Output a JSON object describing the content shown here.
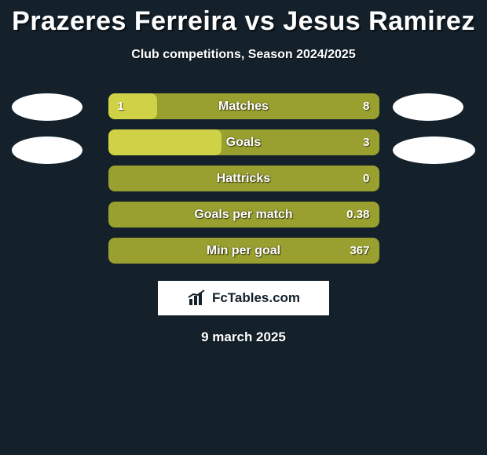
{
  "header": {
    "title": "Prazeres Ferreira vs Jesus Ramirez",
    "subtitle": "Club competitions, Season 2024/2025"
  },
  "colors": {
    "track": "#9aa02f",
    "fill": "#cfd247",
    "background": "#14212b",
    "brand_bg": "#ffffff"
  },
  "bars": [
    {
      "label": "Matches",
      "left": "1",
      "right": "8",
      "fill_pct": 18
    },
    {
      "label": "Goals",
      "left": "",
      "right": "3",
      "fill_pct": 42
    },
    {
      "label": "Hattricks",
      "left": "",
      "right": "0",
      "fill_pct": 0
    },
    {
      "label": "Goals per match",
      "left": "",
      "right": "0.38",
      "fill_pct": 0
    },
    {
      "label": "Min per goal",
      "left": "",
      "right": "367",
      "fill_pct": 0
    }
  ],
  "brand": {
    "text": "FcTables.com"
  },
  "date": "9 march 2025"
}
